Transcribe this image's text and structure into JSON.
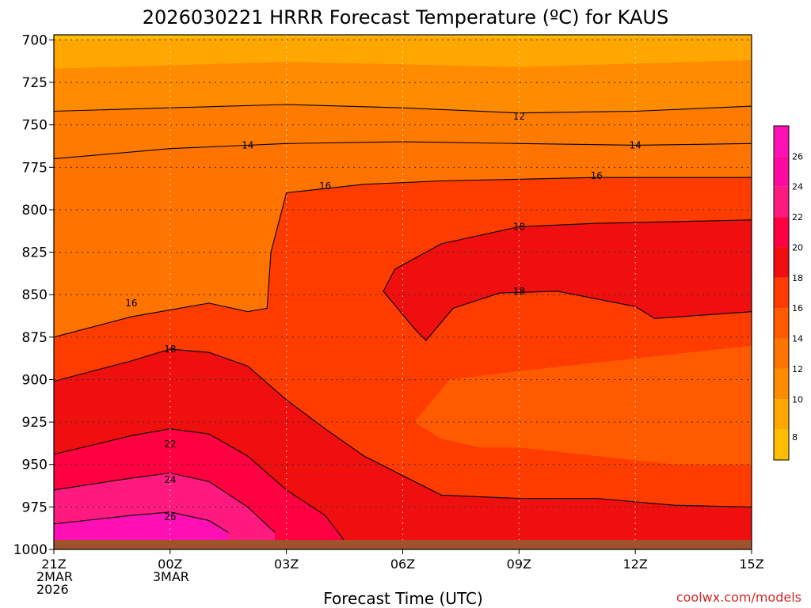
{
  "chart_data": {
    "type": "heatmap",
    "title": "2026030221 HRRR Forecast Temperature (ºC) for KAUS",
    "xlabel": "Forecast Time (UTC)",
    "credit": "coolwx.com/models",
    "x_ticks": [
      {
        "hour": 0,
        "lines": [
          "21Z",
          "2MAR",
          "2026"
        ]
      },
      {
        "hour": 3,
        "lines": [
          "00Z",
          "3MAR"
        ]
      },
      {
        "hour": 6,
        "lines": [
          "03Z"
        ]
      },
      {
        "hour": 9,
        "lines": [
          "06Z"
        ]
      },
      {
        "hour": 12,
        "lines": [
          "09Z"
        ]
      },
      {
        "hour": 15,
        "lines": [
          "12Z"
        ]
      },
      {
        "hour": 18,
        "lines": [
          "15Z"
        ]
      }
    ],
    "xlim": [
      0,
      18
    ],
    "ylim": [
      1000,
      697
    ],
    "y_ticks": [
      700,
      725,
      750,
      775,
      800,
      825,
      850,
      875,
      900,
      925,
      950,
      975,
      1000
    ],
    "colorbar": {
      "levels": [
        8,
        10,
        12,
        14,
        16,
        18,
        20,
        22,
        24,
        26
      ],
      "colors": [
        "#ffbf00",
        "#ffa600",
        "#ff8c00",
        "#ff7300",
        "#ff5a00",
        "#ff3c00",
        "#f00f0f",
        "#ff0040",
        "#ff1a80",
        "#ff0aa0",
        "#ff10b4"
      ]
    },
    "grid": true,
    "contours": [
      {
        "level": 12,
        "label": "12",
        "label_at": [
          12,
          745
        ],
        "points": [
          [
            0,
            742
          ],
          [
            3,
            740
          ],
          [
            6,
            738
          ],
          [
            9,
            740
          ],
          [
            12,
            743
          ],
          [
            15,
            742
          ],
          [
            18,
            739
          ]
        ]
      },
      {
        "level": 14,
        "label": "14",
        "label_at": [
          5,
          762
        ],
        "points": [
          [
            0,
            770
          ],
          [
            3,
            764
          ],
          [
            6,
            761
          ],
          [
            9,
            760
          ],
          [
            12,
            761
          ],
          [
            15,
            762
          ],
          [
            18,
            761
          ]
        ]
      },
      {
        "level": 14,
        "label": "14",
        "label_at": [
          15,
          762
        ],
        "points": []
      },
      {
        "level": 16,
        "label": "16",
        "label_at": [
          7,
          786
        ],
        "points": [
          [
            0,
            875
          ],
          [
            2,
            863
          ],
          [
            4,
            855
          ],
          [
            5,
            860
          ],
          [
            5.5,
            858
          ],
          [
            5.6,
            825
          ],
          [
            6,
            790
          ],
          [
            8,
            785
          ],
          [
            10,
            783
          ],
          [
            14,
            781
          ],
          [
            18,
            781
          ]
        ]
      },
      {
        "level": 16,
        "label": "16",
        "label_at": [
          14,
          780
        ],
        "points": []
      },
      {
        "level": 16,
        "label": "16",
        "label_at": [
          2,
          855
        ],
        "points": []
      },
      {
        "level": 18,
        "label": "18",
        "label_at": [
          12,
          810
        ],
        "points": [
          [
            18,
            806
          ],
          [
            14,
            808
          ],
          [
            12,
            810
          ],
          [
            10,
            820
          ],
          [
            8.8,
            835
          ],
          [
            8.5,
            848
          ],
          [
            9.3,
            870
          ],
          [
            9.6,
            877
          ],
          [
            10.3,
            858
          ],
          [
            11.5,
            849
          ],
          [
            13,
            848
          ],
          [
            15,
            857
          ],
          [
            15.5,
            864
          ],
          [
            18,
            860
          ]
        ]
      },
      {
        "level": 18,
        "label": "18",
        "label_at": [
          12,
          848
        ],
        "points": []
      },
      {
        "level": 18,
        "label": "18",
        "label_at": [
          3,
          882
        ],
        "points": [
          [
            0,
            901
          ],
          [
            2,
            889
          ],
          [
            3,
            882
          ],
          [
            4,
            884
          ],
          [
            5,
            892
          ],
          [
            6,
            912
          ],
          [
            7,
            929
          ],
          [
            8,
            945
          ],
          [
            10,
            968
          ],
          [
            12,
            970
          ],
          [
            14,
            970
          ],
          [
            16,
            974
          ],
          [
            18,
            975
          ]
        ]
      },
      {
        "level": 22,
        "label": "22",
        "label_at": [
          3,
          938
        ],
        "points": [
          [
            0,
            944
          ],
          [
            2,
            933
          ],
          [
            3,
            929
          ],
          [
            4,
            932
          ],
          [
            5,
            945
          ],
          [
            6,
            965
          ],
          [
            7,
            980
          ],
          [
            7.5,
            995
          ]
        ]
      },
      {
        "level": 24,
        "label": "24",
        "label_at": [
          3,
          959
        ],
        "points": [
          [
            0,
            965
          ],
          [
            2,
            958
          ],
          [
            3,
            955
          ],
          [
            4,
            960
          ],
          [
            5,
            975
          ],
          [
            5.7,
            990
          ]
        ]
      },
      {
        "level": 26,
        "label": "26",
        "label_at": [
          3,
          981
        ],
        "points": [
          [
            0,
            985
          ],
          [
            2,
            980
          ],
          [
            3,
            978
          ],
          [
            4,
            983
          ],
          [
            4.5,
            990
          ]
        ]
      }
    ]
  }
}
